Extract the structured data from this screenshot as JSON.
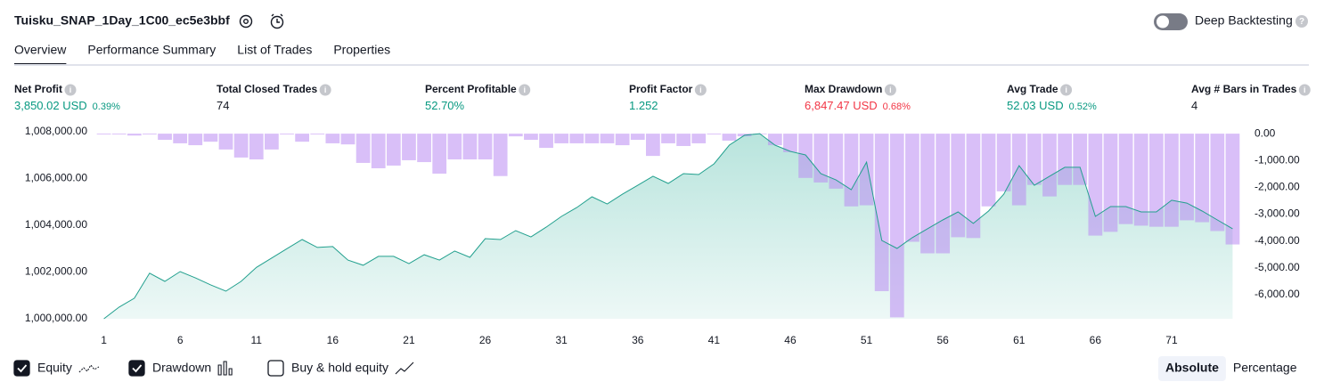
{
  "header": {
    "title": "Tuisku_SNAP_1Day_1C00_ec5e3bbf",
    "toggle_label": "Deep Backtesting",
    "toggle_on": false
  },
  "tabs": [
    "Overview",
    "Performance Summary",
    "List of Trades",
    "Properties"
  ],
  "active_tab": 0,
  "metrics": [
    {
      "label": "Net Profit",
      "value": "3,850.02 USD",
      "percent": "0.39%",
      "color": "#089981"
    },
    {
      "label": "Total Closed Trades",
      "value": "74",
      "color": "#131722"
    },
    {
      "label": "Percent Profitable",
      "value": "52.70%",
      "color": "#089981"
    },
    {
      "label": "Profit Factor",
      "value": "1.252",
      "color": "#089981"
    },
    {
      "label": "Max Drawdown",
      "value": "6,847.47 USD",
      "percent": "0.68%",
      "color": "#f23645"
    },
    {
      "label": "Avg Trade",
      "value": "52.03 USD",
      "percent": "0.52%",
      "color": "#089981"
    },
    {
      "label": "Avg # Bars in Trades",
      "value": "4",
      "color": "#131722"
    }
  ],
  "chart_data": {
    "type": "combo",
    "x": [
      1,
      2,
      3,
      4,
      5,
      6,
      7,
      8,
      9,
      10,
      11,
      12,
      13,
      14,
      15,
      16,
      17,
      18,
      19,
      20,
      21,
      22,
      23,
      24,
      25,
      26,
      27,
      28,
      29,
      30,
      31,
      32,
      33,
      34,
      35,
      36,
      37,
      38,
      39,
      40,
      41,
      42,
      43,
      44,
      45,
      46,
      47,
      48,
      49,
      50,
      51,
      52,
      53,
      54,
      55,
      56,
      57,
      58,
      59,
      60,
      61,
      62,
      63,
      64,
      65,
      66,
      67,
      68,
      69,
      70,
      71,
      72,
      73,
      74,
      75
    ],
    "xlim": [
      0.5,
      75.5
    ],
    "xticks": [
      1,
      6,
      11,
      16,
      21,
      26,
      31,
      36,
      41,
      46,
      51,
      56,
      61,
      66,
      71
    ],
    "ylim": [
      1000000,
      1008000
    ],
    "yticks": [
      {
        "value": 1000000,
        "label": "1,000,000.00"
      },
      {
        "value": 1002000,
        "label": "1,002,000.00"
      },
      {
        "value": 1004000,
        "label": "1,004,000.00"
      },
      {
        "value": 1006000,
        "label": "1,006,000.00"
      },
      {
        "value": 1008000,
        "label": "1,008,000.00"
      }
    ],
    "y2lim": [
      -6900,
      70
    ],
    "y2ticks": [
      {
        "value": 0,
        "label": "0.00"
      },
      {
        "value": -1000,
        "label": "-1,000.00"
      },
      {
        "value": -2000,
        "label": "-2,000.00"
      },
      {
        "value": -3000,
        "label": "-3,000.00"
      },
      {
        "value": -4000,
        "label": "-4,000.00"
      },
      {
        "value": -5000,
        "label": "-5,000.00"
      },
      {
        "value": -6000,
        "label": "-6,000.00"
      }
    ],
    "grid": false,
    "series": [
      {
        "name": "Equity",
        "kind": "line",
        "color": "#22a08e",
        "visible": true,
        "values": [
          1000000,
          1000500,
          1000880,
          1001950,
          1001600,
          1002020,
          1001750,
          1001450,
          1001180,
          1001600,
          1002200,
          1002600,
          1003000,
          1003390,
          1003050,
          1003090,
          1002510,
          1002290,
          1002670,
          1002670,
          1002360,
          1002740,
          1002510,
          1002900,
          1002630,
          1003430,
          1003390,
          1003770,
          1003500,
          1003920,
          1004380,
          1004760,
          1005220,
          1004910,
          1005330,
          1005710,
          1006100,
          1005790,
          1006210,
          1006170,
          1006630,
          1007430,
          1007850,
          1007920,
          1007430,
          1007160,
          1007010,
          1006210,
          1005940,
          1005520,
          1006700,
          1003350,
          1003010,
          1003470,
          1003850,
          1004230,
          1004570,
          1004080,
          1004610,
          1005330,
          1006550,
          1005710,
          1006100,
          1006480,
          1006480,
          1004380,
          1004800,
          1004800,
          1004570,
          1004570,
          1005070,
          1004950,
          1004610,
          1004230,
          1003850.02
        ]
      },
      {
        "name": "Drawdown",
        "kind": "bar",
        "axis": "y2",
        "color": "#b98af3",
        "visible": true,
        "values": [
          -30,
          -30,
          -70,
          -30,
          -230,
          -360,
          -430,
          -300,
          -590,
          -890,
          -960,
          -590,
          -30,
          -300,
          -30,
          -360,
          -400,
          -1090,
          -1290,
          -1190,
          -990,
          -1060,
          -1490,
          -960,
          -960,
          -960,
          -1580,
          -100,
          -230,
          -530,
          -360,
          -360,
          -360,
          -360,
          -430,
          -230,
          -830,
          -360,
          -460,
          -360,
          -30,
          -260,
          -100,
          0,
          -430,
          -690,
          -1650,
          -1820,
          -2050,
          -2710,
          -2670,
          -5870,
          -6847.47,
          -4030,
          -4460,
          -4460,
          -3860,
          -3890,
          -2710,
          -2150,
          -2670,
          -1910,
          -2340,
          -1910,
          -1910,
          -3800,
          -3660,
          -3370,
          -3430,
          -3470,
          -3470,
          -3230,
          -3300,
          -3630,
          -4130
        ]
      }
    ],
    "buy_hold": {
      "label": "Buy & hold equity",
      "visible": false
    }
  },
  "scale_buttons": [
    "Absolute",
    "Percentage"
  ],
  "active_scale": 0
}
